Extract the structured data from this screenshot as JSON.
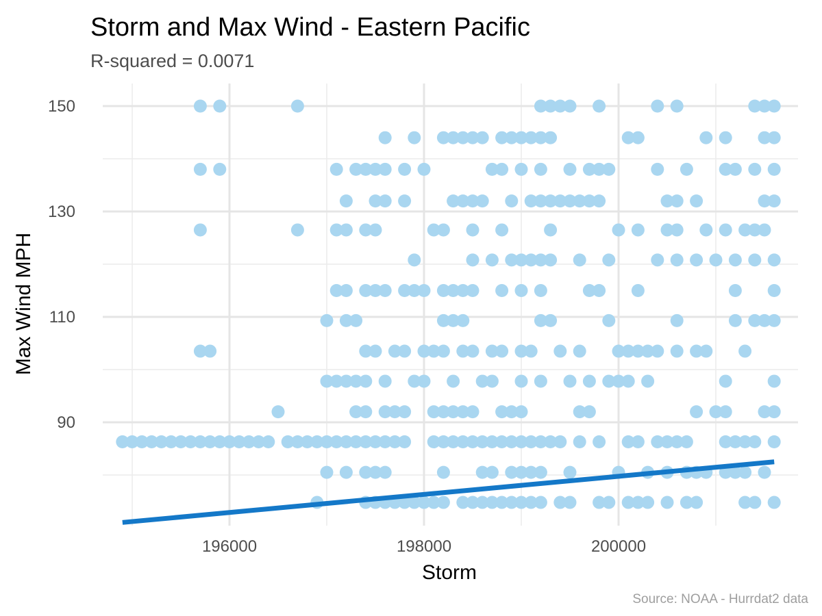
{
  "chart_data": {
    "type": "scatter",
    "title": "Storm and Max Wind - Eastern Pacific",
    "subtitle": "R-squared =  0.0071",
    "xlabel": "Storm",
    "ylabel": "Max Wind MPH",
    "caption": "Source: NOAA - Hurrdat2 data",
    "xlim": [
      194900,
      201600
    ],
    "ylim": [
      70,
      154
    ],
    "x_ticks": [
      196000,
      198000,
      200000
    ],
    "x_tick_labels": [
      "196000",
      "198000",
      "200000"
    ],
    "y_ticks": [
      90,
      110,
      130,
      150
    ],
    "y_tick_labels": [
      "90",
      "110",
      "130",
      "150"
    ],
    "grid": true,
    "legend": "none",
    "point_color": "#a9d6f0",
    "line_color": "#1478c8",
    "trendline": {
      "x": [
        194900,
        201600
      ],
      "y": [
        71,
        82.5
      ]
    },
    "points": [
      [
        194900,
        86.3
      ],
      [
        195000,
        86.3
      ],
      [
        195100,
        86.3
      ],
      [
        195200,
        86.3
      ],
      [
        195300,
        86.3
      ],
      [
        195400,
        86.3
      ],
      [
        195500,
        86.3
      ],
      [
        195600,
        86.3
      ],
      [
        195700,
        86.3
      ],
      [
        195800,
        86.3
      ],
      [
        195900,
        86.3
      ],
      [
        196000,
        86.3
      ],
      [
        196100,
        86.3
      ],
      [
        196200,
        86.3
      ],
      [
        196300,
        86.3
      ],
      [
        196400,
        86.3
      ],
      [
        196600,
        86.3
      ],
      [
        196700,
        86.3
      ],
      [
        196800,
        86.3
      ],
      [
        196900,
        86.3
      ],
      [
        197000,
        86.3
      ],
      [
        197100,
        86.3
      ],
      [
        197200,
        86.3
      ],
      [
        197300,
        86.3
      ],
      [
        197400,
        86.3
      ],
      [
        197500,
        86.3
      ],
      [
        197600,
        86.3
      ],
      [
        197700,
        86.3
      ],
      [
        197800,
        86.3
      ],
      [
        198100,
        86.3
      ],
      [
        198200,
        86.3
      ],
      [
        198300,
        86.3
      ],
      [
        198400,
        86.3
      ],
      [
        198500,
        86.3
      ],
      [
        198600,
        86.3
      ],
      [
        198700,
        86.3
      ],
      [
        198800,
        86.3
      ],
      [
        198900,
        86.3
      ],
      [
        199000,
        86.3
      ],
      [
        199100,
        86.3
      ],
      [
        199200,
        86.3
      ],
      [
        199300,
        86.3
      ],
      [
        199400,
        86.3
      ],
      [
        199600,
        86.3
      ],
      [
        199800,
        86.3
      ],
      [
        200100,
        86.3
      ],
      [
        200200,
        86.3
      ],
      [
        200400,
        86.3
      ],
      [
        200500,
        86.3
      ],
      [
        200600,
        86.3
      ],
      [
        200700,
        86.3
      ],
      [
        201100,
        86.3
      ],
      [
        201200,
        86.3
      ],
      [
        201300,
        86.3
      ],
      [
        201400,
        86.3
      ],
      [
        201600,
        86.3
      ],
      [
        195700,
        150
      ],
      [
        195900,
        150
      ],
      [
        196700,
        150
      ],
      [
        199200,
        150
      ],
      [
        199300,
        150
      ],
      [
        199400,
        150
      ],
      [
        199500,
        150
      ],
      [
        199800,
        150
      ],
      [
        200400,
        150
      ],
      [
        200600,
        150
      ],
      [
        201400,
        150
      ],
      [
        201500,
        150
      ],
      [
        201600,
        150
      ],
      [
        197600,
        144
      ],
      [
        197900,
        144
      ],
      [
        198200,
        144
      ],
      [
        198300,
        144
      ],
      [
        198400,
        144
      ],
      [
        198500,
        144
      ],
      [
        198600,
        144
      ],
      [
        198800,
        144
      ],
      [
        198900,
        144
      ],
      [
        199000,
        144
      ],
      [
        199100,
        144
      ],
      [
        199200,
        144
      ],
      [
        199300,
        144
      ],
      [
        200100,
        144
      ],
      [
        200200,
        144
      ],
      [
        200900,
        144
      ],
      [
        201100,
        144
      ],
      [
        201500,
        144
      ],
      [
        201600,
        144
      ],
      [
        195700,
        138
      ],
      [
        195900,
        138
      ],
      [
        197100,
        138
      ],
      [
        197300,
        138
      ],
      [
        197400,
        138
      ],
      [
        197500,
        138
      ],
      [
        197600,
        138
      ],
      [
        197800,
        138
      ],
      [
        198000,
        138
      ],
      [
        198700,
        138
      ],
      [
        198800,
        138
      ],
      [
        199000,
        138
      ],
      [
        199200,
        138
      ],
      [
        199500,
        138
      ],
      [
        199700,
        138
      ],
      [
        199800,
        138
      ],
      [
        199900,
        138
      ],
      [
        200400,
        138
      ],
      [
        200700,
        138
      ],
      [
        201100,
        138
      ],
      [
        201200,
        138
      ],
      [
        201400,
        138
      ],
      [
        201600,
        138
      ],
      [
        197200,
        132
      ],
      [
        197500,
        132
      ],
      [
        197600,
        132
      ],
      [
        197800,
        132
      ],
      [
        198300,
        132
      ],
      [
        198400,
        132
      ],
      [
        198500,
        132
      ],
      [
        198600,
        132
      ],
      [
        198900,
        132
      ],
      [
        199100,
        132
      ],
      [
        199200,
        132
      ],
      [
        199300,
        132
      ],
      [
        199400,
        132
      ],
      [
        199500,
        132
      ],
      [
        199600,
        132
      ],
      [
        199700,
        132
      ],
      [
        199800,
        132
      ],
      [
        200500,
        132
      ],
      [
        200600,
        132
      ],
      [
        200800,
        132
      ],
      [
        201500,
        132
      ],
      [
        201600,
        132
      ],
      [
        195700,
        126.5
      ],
      [
        196700,
        126.5
      ],
      [
        197100,
        126.5
      ],
      [
        197200,
        126.5
      ],
      [
        197400,
        126.5
      ],
      [
        197500,
        126.5
      ],
      [
        198100,
        126.5
      ],
      [
        198200,
        126.5
      ],
      [
        198500,
        126.5
      ],
      [
        198800,
        126.5
      ],
      [
        199300,
        126.5
      ],
      [
        200000,
        126.5
      ],
      [
        200200,
        126.5
      ],
      [
        200500,
        126.5
      ],
      [
        200600,
        126.5
      ],
      [
        200900,
        126.5
      ],
      [
        201100,
        126.5
      ],
      [
        201300,
        126.5
      ],
      [
        201400,
        126.5
      ],
      [
        201500,
        126.5
      ],
      [
        197900,
        120.8
      ],
      [
        198500,
        120.8
      ],
      [
        198700,
        120.8
      ],
      [
        198900,
        120.8
      ],
      [
        199000,
        120.8
      ],
      [
        199100,
        120.8
      ],
      [
        199200,
        120.8
      ],
      [
        199300,
        120.8
      ],
      [
        199600,
        120.8
      ],
      [
        199900,
        120.8
      ],
      [
        200400,
        120.8
      ],
      [
        200600,
        120.8
      ],
      [
        200800,
        120.8
      ],
      [
        201000,
        120.8
      ],
      [
        201200,
        120.8
      ],
      [
        201400,
        120.8
      ],
      [
        201600,
        120.8
      ],
      [
        197100,
        115
      ],
      [
        197200,
        115
      ],
      [
        197400,
        115
      ],
      [
        197500,
        115
      ],
      [
        197600,
        115
      ],
      [
        197800,
        115
      ],
      [
        197900,
        115
      ],
      [
        198000,
        115
      ],
      [
        198200,
        115
      ],
      [
        198300,
        115
      ],
      [
        198400,
        115
      ],
      [
        198500,
        115
      ],
      [
        198800,
        115
      ],
      [
        199000,
        115
      ],
      [
        199200,
        115
      ],
      [
        199700,
        115
      ],
      [
        199800,
        115
      ],
      [
        200200,
        115
      ],
      [
        201200,
        115
      ],
      [
        201600,
        115
      ],
      [
        197000,
        109.3
      ],
      [
        197200,
        109.3
      ],
      [
        197300,
        109.3
      ],
      [
        198200,
        109.3
      ],
      [
        198300,
        109.3
      ],
      [
        198400,
        109.3
      ],
      [
        199200,
        109.3
      ],
      [
        199300,
        109.3
      ],
      [
        199900,
        109.3
      ],
      [
        200600,
        109.3
      ],
      [
        201200,
        109.3
      ],
      [
        201400,
        109.3
      ],
      [
        201500,
        109.3
      ],
      [
        201600,
        109.3
      ],
      [
        195700,
        103.5
      ],
      [
        195800,
        103.5
      ],
      [
        197400,
        103.5
      ],
      [
        197500,
        103.5
      ],
      [
        197700,
        103.5
      ],
      [
        197800,
        103.5
      ],
      [
        198000,
        103.5
      ],
      [
        198100,
        103.5
      ],
      [
        198200,
        103.5
      ],
      [
        198400,
        103.5
      ],
      [
        198500,
        103.5
      ],
      [
        198700,
        103.5
      ],
      [
        198800,
        103.5
      ],
      [
        199000,
        103.5
      ],
      [
        199100,
        103.5
      ],
      [
        199400,
        103.5
      ],
      [
        199600,
        103.5
      ],
      [
        200000,
        103.5
      ],
      [
        200100,
        103.5
      ],
      [
        200200,
        103.5
      ],
      [
        200300,
        103.5
      ],
      [
        200400,
        103.5
      ],
      [
        200600,
        103.5
      ],
      [
        200800,
        103.5
      ],
      [
        200900,
        103.5
      ],
      [
        201300,
        103.5
      ],
      [
        197000,
        97.8
      ],
      [
        197100,
        97.8
      ],
      [
        197200,
        97.8
      ],
      [
        197300,
        97.8
      ],
      [
        197400,
        97.8
      ],
      [
        197600,
        97.8
      ],
      [
        197900,
        97.8
      ],
      [
        198000,
        97.8
      ],
      [
        198300,
        97.8
      ],
      [
        198600,
        97.8
      ],
      [
        198700,
        97.8
      ],
      [
        199000,
        97.8
      ],
      [
        199200,
        97.8
      ],
      [
        199500,
        97.8
      ],
      [
        199700,
        97.8
      ],
      [
        199900,
        97.8
      ],
      [
        200000,
        97.8
      ],
      [
        200100,
        97.8
      ],
      [
        200300,
        97.8
      ],
      [
        201100,
        97.8
      ],
      [
        201600,
        97.8
      ],
      [
        196500,
        92
      ],
      [
        197300,
        92
      ],
      [
        197400,
        92
      ],
      [
        197600,
        92
      ],
      [
        197700,
        92
      ],
      [
        197800,
        92
      ],
      [
        198100,
        92
      ],
      [
        198200,
        92
      ],
      [
        198300,
        92
      ],
      [
        198400,
        92
      ],
      [
        198500,
        92
      ],
      [
        198800,
        92
      ],
      [
        198900,
        92
      ],
      [
        199000,
        92
      ],
      [
        199600,
        92
      ],
      [
        199700,
        92
      ],
      [
        200800,
        92
      ],
      [
        201000,
        92
      ],
      [
        201100,
        92
      ],
      [
        201500,
        92
      ],
      [
        201600,
        92
      ],
      [
        197000,
        80.5
      ],
      [
        197200,
        80.5
      ],
      [
        197400,
        80.5
      ],
      [
        197500,
        80.5
      ],
      [
        197600,
        80.5
      ],
      [
        198200,
        80.5
      ],
      [
        198600,
        80.5
      ],
      [
        198700,
        80.5
      ],
      [
        198900,
        80.5
      ],
      [
        199000,
        80.5
      ],
      [
        199100,
        80.5
      ],
      [
        199200,
        80.5
      ],
      [
        199500,
        80.5
      ],
      [
        200000,
        80.5
      ],
      [
        200300,
        80.5
      ],
      [
        200500,
        80.5
      ],
      [
        200700,
        80.5
      ],
      [
        200800,
        80.5
      ],
      [
        200900,
        80.5
      ],
      [
        201100,
        80.5
      ],
      [
        201200,
        80.5
      ],
      [
        201300,
        80.5
      ],
      [
        201500,
        80.5
      ],
      [
        196900,
        74.8
      ],
      [
        197400,
        74.8
      ],
      [
        197500,
        74.8
      ],
      [
        197600,
        74.8
      ],
      [
        197700,
        74.8
      ],
      [
        197800,
        74.8
      ],
      [
        197900,
        74.8
      ],
      [
        198000,
        74.8
      ],
      [
        198100,
        74.8
      ],
      [
        198200,
        74.8
      ],
      [
        198400,
        74.8
      ],
      [
        198500,
        74.8
      ],
      [
        198600,
        74.8
      ],
      [
        198700,
        74.8
      ],
      [
        198800,
        74.8
      ],
      [
        198900,
        74.8
      ],
      [
        199000,
        74.8
      ],
      [
        199100,
        74.8
      ],
      [
        199200,
        74.8
      ],
      [
        199400,
        74.8
      ],
      [
        199500,
        74.8
      ],
      [
        199800,
        74.8
      ],
      [
        199900,
        74.8
      ],
      [
        200100,
        74.8
      ],
      [
        200200,
        74.8
      ],
      [
        200300,
        74.8
      ],
      [
        200500,
        74.8
      ],
      [
        200700,
        74.8
      ],
      [
        200800,
        74.8
      ],
      [
        201300,
        74.8
      ],
      [
        201400,
        74.8
      ],
      [
        201600,
        74.8
      ]
    ]
  }
}
